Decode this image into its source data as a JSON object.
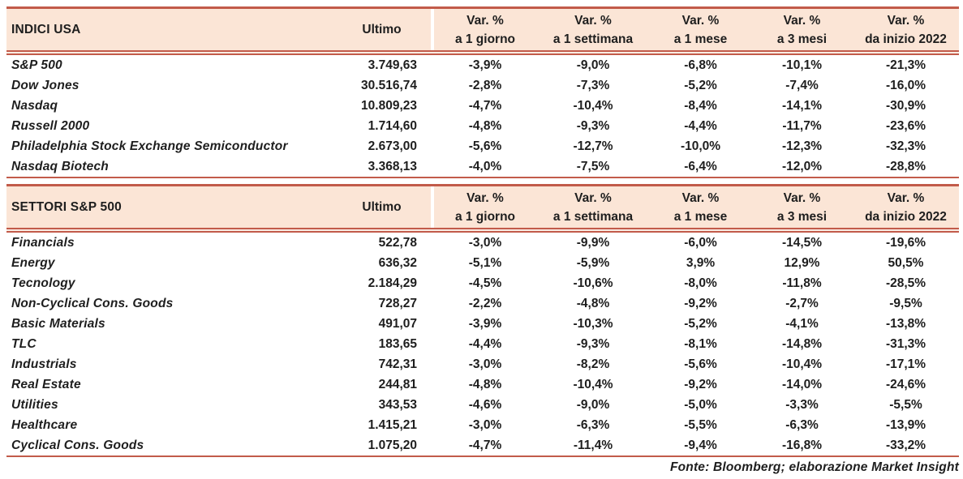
{
  "colors": {
    "header_bg": "#fbe5d6",
    "rule": "#c25b4a",
    "text": "#1e1e1e"
  },
  "columns": {
    "ultimo": "Ultimo",
    "var_headers": [
      {
        "line1": "Var. %",
        "line2": "a 1 giorno"
      },
      {
        "line1": "Var. %",
        "line2": "a 1 settimana"
      },
      {
        "line1": "Var. %",
        "line2": "a 1 mese"
      },
      {
        "line1": "Var. %",
        "line2": "a 3 mesi"
      },
      {
        "line1": "Var. %",
        "line2": "da inizio 2022"
      }
    ]
  },
  "sections": [
    {
      "title": "INDICI USA",
      "rows": [
        {
          "name": "S&P 500",
          "ultimo": "3.749,63",
          "vars": [
            "-3,9%",
            "-9,0%",
            "-6,8%",
            "-10,1%",
            "-21,3%"
          ]
        },
        {
          "name": "Dow Jones",
          "ultimo": "30.516,74",
          "vars": [
            "-2,8%",
            "-7,3%",
            "-5,2%",
            "-7,4%",
            "-16,0%"
          ]
        },
        {
          "name": "Nasdaq",
          "ultimo": "10.809,23",
          "vars": [
            "-4,7%",
            "-10,4%",
            "-8,4%",
            "-14,1%",
            "-30,9%"
          ]
        },
        {
          "name": "Russell 2000",
          "ultimo": "1.714,60",
          "vars": [
            "-4,8%",
            "-9,3%",
            "-4,4%",
            "-11,7%",
            "-23,6%"
          ]
        },
        {
          "name": "Philadelphia Stock Exchange Semiconductor",
          "ultimo": "2.673,00",
          "vars": [
            "-5,6%",
            "-12,7%",
            "-10,0%",
            "-12,3%",
            "-32,3%"
          ]
        },
        {
          "name": "Nasdaq Biotech",
          "ultimo": "3.368,13",
          "vars": [
            "-4,0%",
            "-7,5%",
            "-6,4%",
            "-12,0%",
            "-28,8%"
          ]
        }
      ]
    },
    {
      "title": "SETTORI S&P 500",
      "rows": [
        {
          "name": "Financials",
          "ultimo": "522,78",
          "vars": [
            "-3,0%",
            "-9,9%",
            "-6,0%",
            "-14,5%",
            "-19,6%"
          ]
        },
        {
          "name": "Energy",
          "ultimo": "636,32",
          "vars": [
            "-5,1%",
            "-5,9%",
            "3,9%",
            "12,9%",
            "50,5%"
          ]
        },
        {
          "name": "Tecnology",
          "ultimo": "2.184,29",
          "vars": [
            "-4,5%",
            "-10,6%",
            "-8,0%",
            "-11,8%",
            "-28,5%"
          ]
        },
        {
          "name": "Non-Cyclical Cons. Goods",
          "ultimo": "728,27",
          "vars": [
            "-2,2%",
            "-4,8%",
            "-9,2%",
            "-2,7%",
            "-9,5%"
          ]
        },
        {
          "name": "Basic Materials",
          "ultimo": "491,07",
          "vars": [
            "-3,9%",
            "-10,3%",
            "-5,2%",
            "-4,1%",
            "-13,8%"
          ]
        },
        {
          "name": "TLC",
          "ultimo": "183,65",
          "vars": [
            "-4,4%",
            "-9,3%",
            "-8,1%",
            "-14,8%",
            "-31,3%"
          ]
        },
        {
          "name": "Industrials",
          "ultimo": "742,31",
          "vars": [
            "-3,0%",
            "-8,2%",
            "-5,6%",
            "-10,4%",
            "-17,1%"
          ]
        },
        {
          "name": "Real Estate",
          "ultimo": "244,81",
          "vars": [
            "-4,8%",
            "-10,4%",
            "-9,2%",
            "-14,0%",
            "-24,6%"
          ]
        },
        {
          "name": "Utilities",
          "ultimo": "343,53",
          "vars": [
            "-4,6%",
            "-9,0%",
            "-5,0%",
            "-3,3%",
            "-5,5%"
          ]
        },
        {
          "name": "Healthcare",
          "ultimo": "1.415,21",
          "vars": [
            "-3,0%",
            "-6,3%",
            "-5,5%",
            "-6,3%",
            "-13,9%"
          ]
        },
        {
          "name": "Cyclical Cons. Goods",
          "ultimo": "1.075,20",
          "vars": [
            "-4,7%",
            "-11,4%",
            "-9,4%",
            "-16,8%",
            "-33,2%"
          ]
        }
      ]
    }
  ],
  "footer": {
    "source_note": "Fonte: Bloomberg; elaborazione Market Insight"
  }
}
